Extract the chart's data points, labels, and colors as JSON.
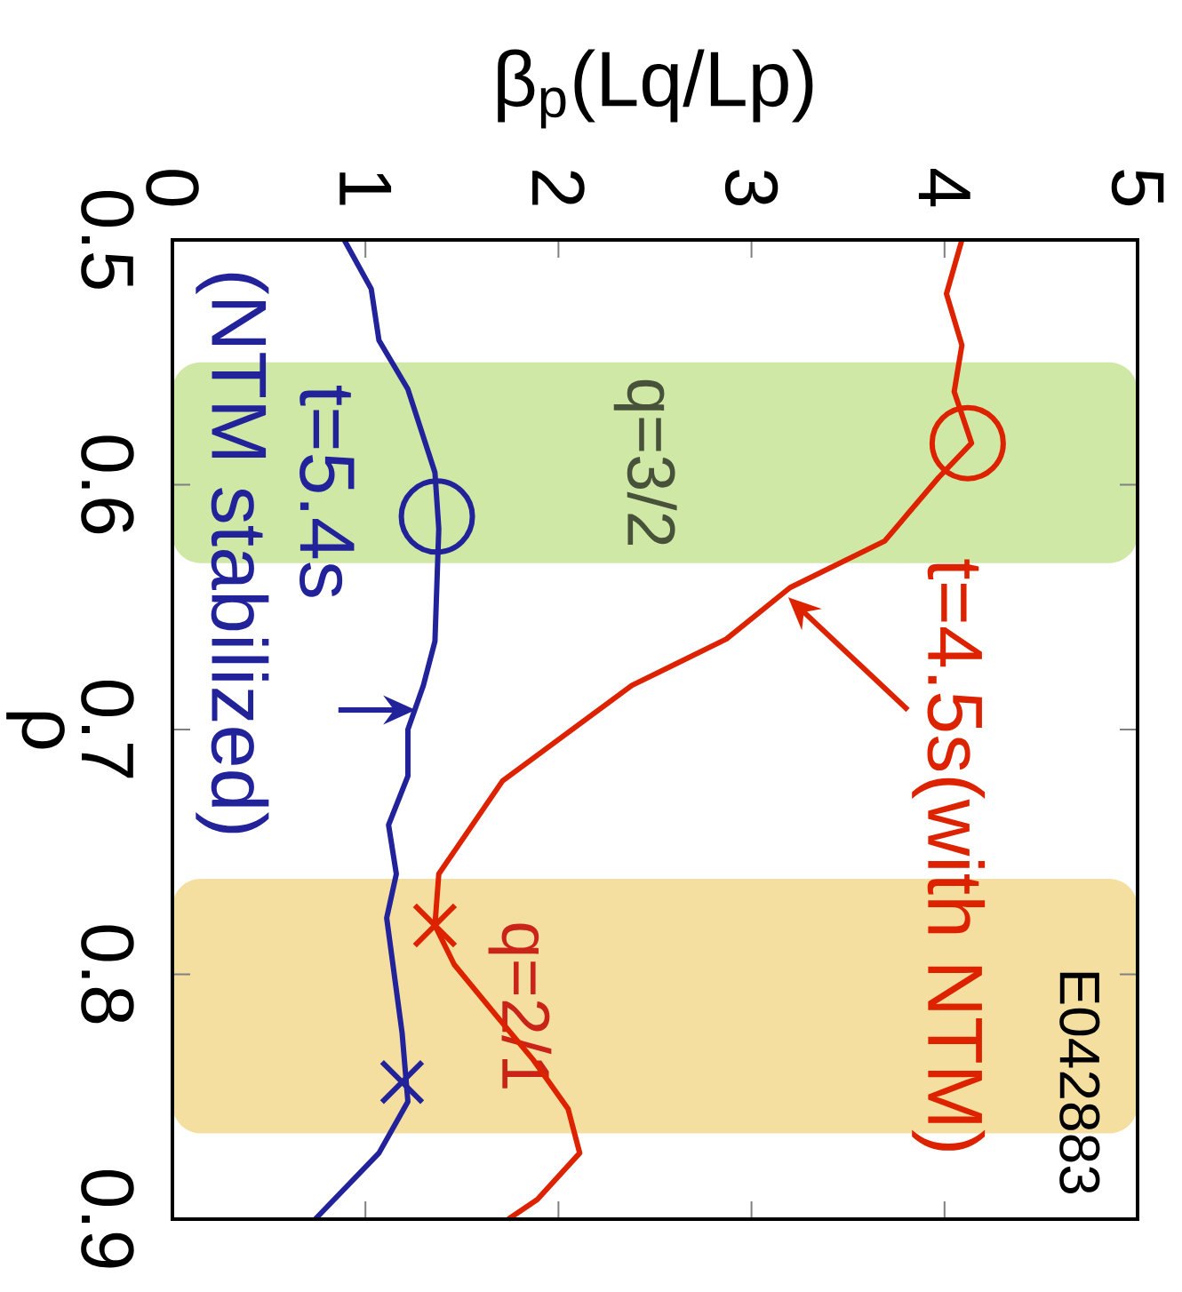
{
  "chart_data": {
    "type": "line",
    "xlabel": "β$_{p}$(Lq/Lp)",
    "ylabel": "ρ",
    "xlim": [
      0,
      5
    ],
    "xticks": [
      0,
      1,
      2,
      3,
      4,
      5
    ],
    "ylim": [
      0.9,
      0.5
    ],
    "yticks": [
      0.5,
      0.6,
      0.7,
      0.8,
      0.9
    ],
    "series": [
      {
        "type": "line",
        "color": "#dd2200",
        "values": [
          0.5,
          0.522,
          0.543,
          0.562,
          0.583,
          0.597,
          0.623,
          0.642,
          0.663,
          0.682,
          0.721,
          0.759,
          0.78,
          0.796,
          0.818,
          0.835,
          0.855,
          0.873,
          0.892,
          0.9
        ],
        "x": [
          4.09,
          4.01,
          4.09,
          4.05,
          4.14,
          3.97,
          3.69,
          3.2,
          2.87,
          2.38,
          1.71,
          1.38,
          1.36,
          1.46,
          1.69,
          1.87,
          2.05,
          2.11,
          1.89,
          1.74
        ]
      },
      {
        "type": "line",
        "color": "#22229a",
        "values": [
          0.5,
          0.52,
          0.541,
          0.561,
          0.595,
          0.618,
          0.664,
          0.682,
          0.7,
          0.719,
          0.739,
          0.759,
          0.777,
          0.824,
          0.852,
          0.873,
          0.9
        ],
        "x": [
          0.89,
          1.03,
          1.07,
          1.22,
          1.36,
          1.38,
          1.36,
          1.3,
          1.22,
          1.22,
          1.12,
          1.16,
          1.11,
          1.19,
          1.22,
          1.07,
          0.74
        ]
      },
      {
        "type": "scatter",
        "marker": "circle",
        "color": "#dd2200",
        "x": [
          4.12
        ],
        "values": [
          0.583
        ]
      },
      {
        "type": "scatter",
        "marker": "circle",
        "color": "#22229a",
        "x": [
          1.37
        ],
        "values": [
          0.613
        ]
      },
      {
        "type": "scatter",
        "marker": "cross",
        "color": "#dd2200",
        "x": [
          1.36
        ],
        "values": [
          0.78
        ]
      },
      {
        "type": "scatter",
        "marker": "cross",
        "color": "#22229a",
        "x": [
          1.19
        ],
        "values": [
          0.844
        ]
      }
    ],
    "bands": [
      {
        "axis": "y",
        "from": 0.55,
        "to": 0.632,
        "label": "q=3/2",
        "color": "#cfe8a6"
      },
      {
        "axis": "y",
        "from": 0.761,
        "to": 0.865,
        "label": "q=2/1",
        "color": "#f5dfa0"
      }
    ],
    "annotations": [
      {
        "text": "t=4.5s(with NTM)",
        "x": 3.19,
        "y": 0.646
      },
      {
        "text": "t=5.4s",
        "x": 1.26,
        "y": 0.692
      },
      "(NTM stabilized)",
      "E042883"
    ]
  }
}
